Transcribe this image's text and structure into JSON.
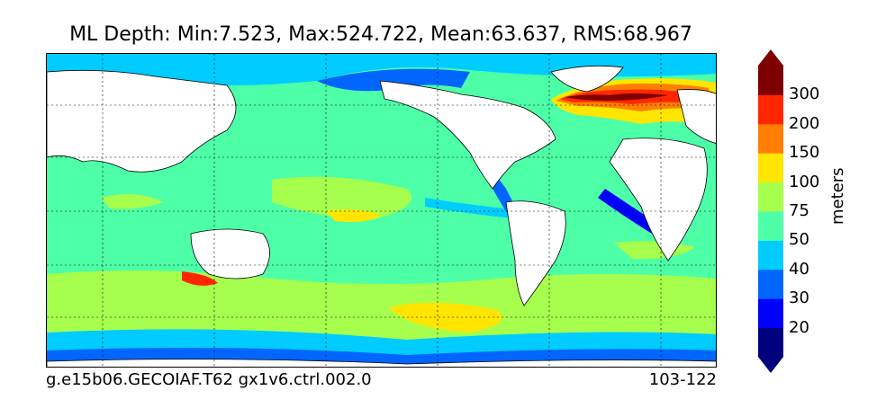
{
  "title": "ML Depth: Min:7.523, Max:524.722, Mean:63.637, RMS:68.967",
  "footer": {
    "case": "g.e15b06.GECOIAF.T62 gx1v6.ctrl.002.0",
    "years": "103-122"
  },
  "colorbar": {
    "units": "meters",
    "tick_labels": [
      "20",
      "30",
      "40",
      "50",
      "75",
      "100",
      "150",
      "200",
      "300"
    ],
    "colors": [
      "#00007f",
      "#0000ff",
      "#0066ff",
      "#00ccff",
      "#4dffa6",
      "#a6ff4d",
      "#ffe500",
      "#ff8000",
      "#ff2600",
      "#7f0000"
    ],
    "extend": "both"
  },
  "map": {
    "projection": "cylindrical",
    "ocean_base_color": "#4dffa6",
    "land_color": "#ffffff",
    "grid": "dashed"
  }
}
